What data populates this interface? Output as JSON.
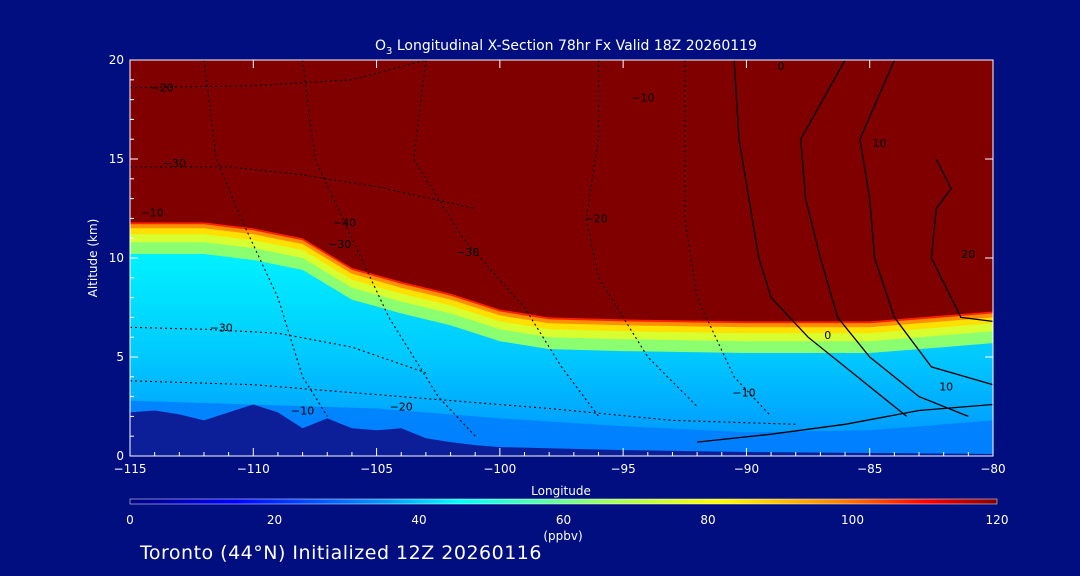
{
  "chart_data": {
    "type": "heatmap",
    "title_parts": [
      "O",
      "3",
      " Longitudinal X-Section 78hr  Fx Valid 18Z 20260119"
    ],
    "xlabel": "Longitude",
    "ylabel": "Altitude (km)",
    "xlim": [
      -115,
      -80
    ],
    "ylim": [
      0,
      20
    ],
    "x_ticks": [
      -115,
      -110,
      -105,
      -100,
      -95,
      -90,
      -85,
      -80
    ],
    "x_tick_labels": [
      "−115",
      "−110",
      "−105",
      "−100",
      "−95",
      "−90",
      "−85",
      "−80"
    ],
    "y_ticks": [
      0,
      5,
      10,
      15,
      20
    ],
    "y_tick_labels": [
      "0",
      "5",
      "10",
      "15",
      "20"
    ],
    "colorbar": {
      "min": 0,
      "max": 120,
      "ticks": [
        0,
        20,
        40,
        60,
        80,
        100,
        120
      ],
      "tick_labels": [
        "0",
        "20",
        "40",
        "60",
        "80",
        "100",
        "120"
      ],
      "label": "(ppbv)"
    },
    "ozone_field_ppbv": {
      "longitudes": [
        -115,
        -112,
        -110,
        -108,
        -106,
        -104,
        -102,
        -100,
        -98,
        -95,
        -90,
        -85,
        -83,
        -80
      ],
      "tropopause_km": [
        11.8,
        11.8,
        11.5,
        11.0,
        9.5,
        8.8,
        8.2,
        7.4,
        7.0,
        6.9,
        6.8,
        6.8,
        7.0,
        7.3
      ],
      "stratosphere_value": 120,
      "lower_value": 45,
      "near_surface_value": 25
    },
    "terrain_km": {
      "longitudes": [
        -115,
        -114,
        -113,
        -112,
        -111,
        -110,
        -109,
        -108,
        -107,
        -106,
        -105,
        -104,
        -103,
        -102,
        -101,
        -100,
        -95,
        -90,
        -85,
        -80
      ],
      "altitude": [
        2.2,
        2.3,
        2.1,
        1.8,
        2.2,
        2.6,
        2.2,
        1.4,
        1.9,
        1.4,
        1.3,
        1.4,
        0.9,
        0.7,
        0.55,
        0.45,
        0.3,
        0.2,
        0.15,
        0.1
      ]
    },
    "contour_labels": [
      {
        "text": "−20",
        "lon": -113.7,
        "alt": 18.4
      },
      {
        "text": "−30",
        "lon": -113.2,
        "alt": 14.6
      },
      {
        "text": "−10",
        "lon": -114.1,
        "alt": 12.1
      },
      {
        "text": "−40",
        "lon": -106.3,
        "alt": 11.6
      },
      {
        "text": "−30",
        "lon": -106.5,
        "alt": 10.5
      },
      {
        "text": "−30",
        "lon": -101.3,
        "alt": 10.1
      },
      {
        "text": "−20",
        "lon": -96.1,
        "alt": 11.8
      },
      {
        "text": "−10",
        "lon": -94.2,
        "alt": 17.9
      },
      {
        "text": "−30",
        "lon": -111.3,
        "alt": 6.3
      },
      {
        "text": "−10",
        "lon": -108.0,
        "alt": 2.1
      },
      {
        "text": "−20",
        "lon": -104.0,
        "alt": 2.3
      },
      {
        "text": "−10",
        "lon": -90.1,
        "alt": 3.0
      },
      {
        "text": "0",
        "lon": -86.7,
        "alt": 5.9
      },
      {
        "text": "0",
        "lon": -88.6,
        "alt": 19.5
      },
      {
        "text": "10",
        "lon": -84.6,
        "alt": 15.6
      },
      {
        "text": "20",
        "lon": -81.0,
        "alt": 10.0
      },
      {
        "text": "10",
        "lon": -81.9,
        "alt": 3.3
      }
    ]
  },
  "footer": "Toronto (44°N) Initialized 12Z 20260116",
  "colors": {
    "background": "#000e80",
    "stratosphere": "#800000",
    "terrain": "#0d1e99"
  }
}
